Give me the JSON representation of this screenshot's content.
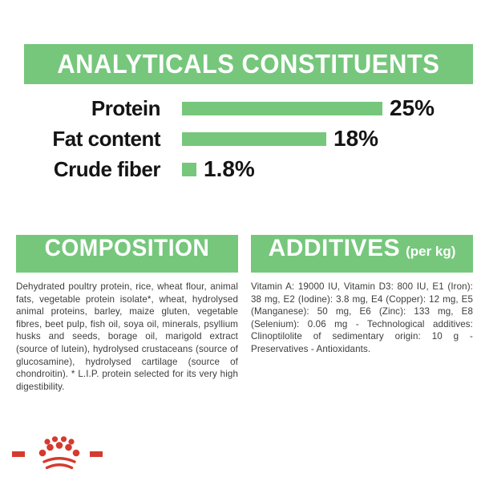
{
  "colors": {
    "green": "#76C77C",
    "red": "#D53A2E",
    "body_text": "#3C3C3C",
    "label_text": "#141414"
  },
  "header": {
    "title": "ANALYTICALS CONSTITUENTS"
  },
  "chart_data": {
    "type": "bar",
    "orientation": "horizontal",
    "title": "ANALYTICALS CONSTITUENTS",
    "categories": [
      "Protein",
      "Fat content",
      "Crude fiber"
    ],
    "values": [
      25,
      18,
      1.8
    ],
    "value_labels": [
      "25%",
      "18%",
      "1.8%"
    ],
    "unit": "%",
    "xlim": [
      0,
      25
    ],
    "grid": false,
    "legend": false,
    "bar_color": "#76C77C",
    "pixels_per_unit": 10
  },
  "composition": {
    "title": "COMPOSITION",
    "body": "Dehydrated poultry protein, rice, wheat flour, animal fats, vegetable protein isolate*, wheat, hydrolysed animal proteins, barley, maize gluten, vegetable fibres, beet pulp, fish oil, soya oil, minerals, psyllium husks and seeds, borage oil, marigold extract (source of lutein), hydrolysed crustaceans (source of glucosamine), hydrolysed cartilage (source of chondroitin). * L.I.P. protein selected for its very high digestibility."
  },
  "additives": {
    "title": "ADDITIVES",
    "title_suffix": "(per kg)",
    "body": "Vitamin A: 19000 IU, Vitamin D3: 800 IU, E1 (Iron): 38 mg, E2 (Iodine): 3.8 mg, E4 (Copper): 12 mg, E5 (Manganese): 50 mg, E6 (Zinc): 133 mg, E8 (Selenium): 0.06 mg - Technological additives: Clinoptilolite of sedimentary origin: 10 g - Preservatives - Antioxidants.",
    "body_color": "#3C3C3C"
  },
  "logo": {
    "name": "royal-canin-crown",
    "color": "#D53A2E"
  }
}
